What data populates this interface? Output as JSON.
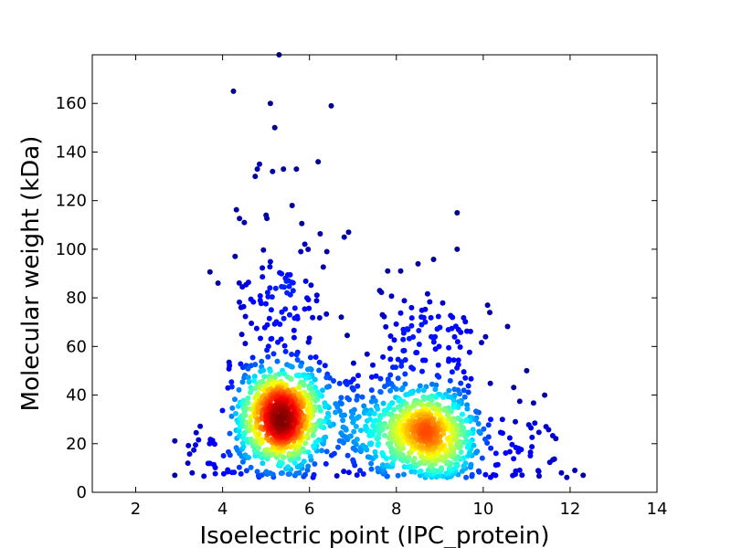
{
  "chart_data": {
    "type": "scatter",
    "title": "",
    "xlabel": "Isoelectric point (IPC_protein)",
    "ylabel": "Molecular weight (kDa)",
    "xlim": [
      1,
      14
    ],
    "ylim": [
      0,
      180
    ],
    "xticks": [
      2,
      4,
      6,
      8,
      10,
      12,
      14
    ],
    "yticks": [
      0,
      20,
      40,
      60,
      80,
      100,
      120,
      140,
      160
    ],
    "grid": false,
    "legend": "none",
    "colormap": "jet (point density)",
    "point_count_estimate": 1900,
    "density_clusters": [
      {
        "pI_center": 5.3,
        "mw_center": 31,
        "pI_sd": 0.45,
        "mw_sd": 11,
        "n": 800
      },
      {
        "pI_center": 8.8,
        "mw_center": 24,
        "pI_sd": 0.55,
        "mw_sd": 11,
        "n": 600
      },
      {
        "pI_center": 7.3,
        "mw_center": 27,
        "pI_sd": 0.9,
        "mw_sd": 11,
        "n": 300
      },
      {
        "pI_center": 5.3,
        "mw_center": 75,
        "pI_sd": 0.6,
        "mw_sd": 15,
        "n": 110
      },
      {
        "pI_center": 8.8,
        "mw_center": 65,
        "pI_sd": 0.7,
        "mw_sd": 12,
        "n": 80
      },
      {
        "pI_center": 10.8,
        "mw_center": 20,
        "pI_sd": 0.6,
        "mw_sd": 11,
        "n": 50
      },
      {
        "pI_center": 4.1,
        "mw_center": 15,
        "pI_sd": 0.4,
        "mw_sd": 7,
        "n": 40
      }
    ],
    "outliers": [
      [
        5.3,
        180
      ],
      [
        4.25,
        165
      ],
      [
        5.1,
        160
      ],
      [
        6.5,
        159
      ],
      [
        5.2,
        150
      ],
      [
        6.2,
        136
      ],
      [
        4.85,
        135
      ],
      [
        4.8,
        133
      ],
      [
        5.4,
        133
      ],
      [
        5.7,
        133
      ],
      [
        5.15,
        132
      ],
      [
        4.75,
        130
      ],
      [
        5.6,
        118
      ],
      [
        5.0,
        114
      ],
      [
        4.5,
        111
      ],
      [
        9.4,
        115
      ],
      [
        9.4,
        100
      ],
      [
        6.9,
        107
      ],
      [
        6.8,
        105
      ],
      [
        6.4,
        99
      ],
      [
        5.8,
        99
      ],
      [
        8.1,
        91
      ],
      [
        8.5,
        94
      ],
      [
        7.8,
        91
      ],
      [
        10.1,
        77
      ],
      [
        10.15,
        74
      ],
      [
        11.0,
        50
      ],
      [
        12.3,
        7
      ],
      [
        11.8,
        8
      ],
      [
        2.9,
        7
      ],
      [
        3.2,
        12
      ],
      [
        3.3,
        8
      ],
      [
        3.7,
        20
      ]
    ]
  }
}
